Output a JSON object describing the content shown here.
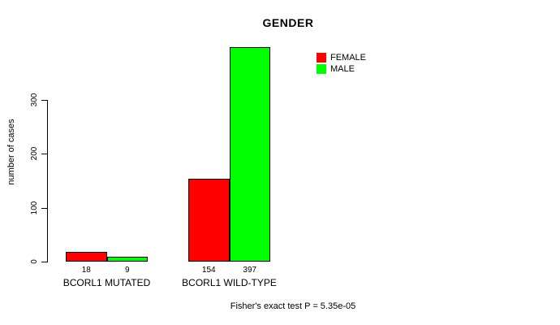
{
  "chart_data": {
    "type": "bar",
    "title": "GENDER",
    "ylabel": "number of cases",
    "xlabel": "",
    "categories": [
      "BCORL1 MUTATED",
      "BCORL1 WILD-TYPE"
    ],
    "series": [
      {
        "name": "FEMALE",
        "color": "#ff0000",
        "values": [
          18,
          154
        ]
      },
      {
        "name": "MALE",
        "color": "#00ff00",
        "values": [
          9,
          397
        ]
      }
    ],
    "bar_value_labels": [
      [
        18,
        9
      ],
      [
        154,
        397
      ]
    ],
    "yticks": [
      0,
      100,
      200,
      300
    ],
    "ylim": [
      0,
      400
    ],
    "grid": false,
    "legend_position": "top-right",
    "bar_outline_color": "#000000",
    "background_color": "#ffffff",
    "annotation": "Fisher's exact test P = 5.35e-05"
  }
}
